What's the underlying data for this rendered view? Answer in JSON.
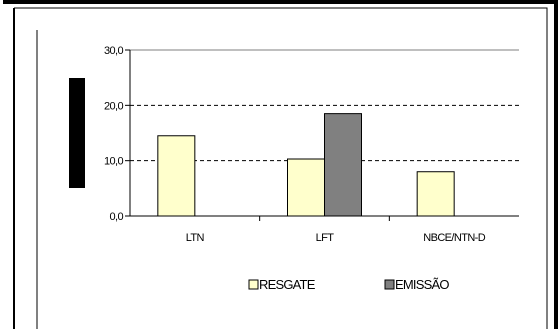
{
  "chart_data": {
    "type": "bar",
    "categories": [
      "LTN",
      "LFT",
      "NBCE/NTN-D"
    ],
    "series": [
      {
        "name": "RESGATE",
        "values": [
          14.5,
          10.3,
          8.0
        ],
        "color": "#FFFFCC"
      },
      {
        "name": "EMISSÃO",
        "values": [
          null,
          18.5,
          null
        ],
        "color": "#808080"
      }
    ],
    "title": "",
    "xlabel": "",
    "ylabel": "",
    "ylim": [
      0,
      30
    ],
    "yticks": [
      0,
      10,
      20,
      30
    ],
    "ytick_labels": [
      "0,0",
      "10,0",
      "20,0",
      "30,0"
    ],
    "grid": "dashed horizontal",
    "legend": "bottom"
  }
}
